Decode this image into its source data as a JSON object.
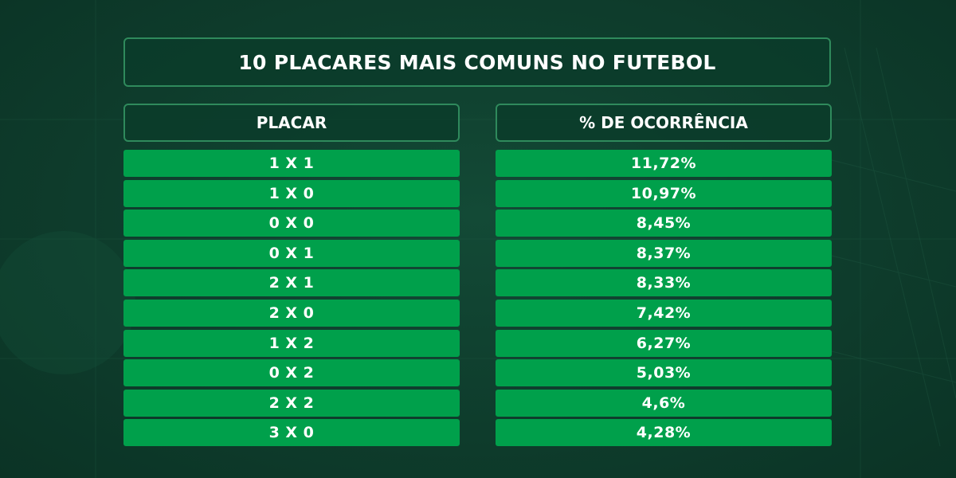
{
  "title": "10 PLACARES MAIS COMUNS NO FUTEBOL",
  "headers": {
    "score": "PLACAR",
    "occurrence": "% DE OCORRÊNCIA"
  },
  "rows": [
    {
      "score": "1 X 1",
      "pct": "11,72%"
    },
    {
      "score": "1 X 0",
      "pct": "10,97%"
    },
    {
      "score": "0 X 0",
      "pct": "8,45%"
    },
    {
      "score": "0 X 1",
      "pct": "8,37%"
    },
    {
      "score": "2 X 1",
      "pct": "8,33%"
    },
    {
      "score": "2 X 0",
      "pct": "7,42%"
    },
    {
      "score": "1 X 2",
      "pct": "6,27%"
    },
    {
      "score": "0 X 2",
      "pct": "5,03%"
    },
    {
      "score": "2 X 2",
      "pct": "4,6%"
    },
    {
      "score": "3 X 0",
      "pct": "4,28%"
    }
  ],
  "colors": {
    "background": "#0e3b2b",
    "row": "#00a04b",
    "border": "#2f8a5c",
    "text": "#ffffff"
  }
}
